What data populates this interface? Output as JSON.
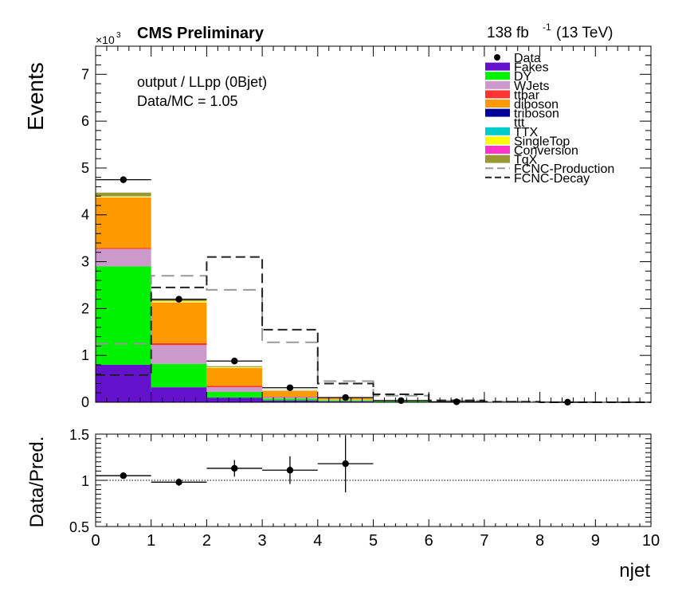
{
  "header": {
    "experiment": "CMS Preliminary",
    "lumi_value": "138 fb",
    "lumi_exp": "-1",
    "lumi_energy": "(13 TeV)",
    "info_line1": "output / LLpp (0Bjet)",
    "info_line2": "Data/MC = 1.05",
    "exponent_base": "×10",
    "exponent_power": "3"
  },
  "chart_data": [
    {
      "type": "bar",
      "stacked": true,
      "ylabel": "Events",
      "xlim": [
        0,
        10
      ],
      "ylim": [
        0,
        7.6
      ],
      "y_scale_note": "×10^3",
      "bin_edges": [
        0,
        1,
        2,
        3,
        4,
        5,
        6,
        7,
        8,
        9,
        10
      ],
      "yticks": [
        "0",
        "1",
        "2",
        "3",
        "4",
        "5",
        "6",
        "7"
      ],
      "series": [
        {
          "name": "Fakes",
          "color": "#6411cc",
          "values": [
            0.8,
            0.32,
            0.1,
            0.04,
            0.02,
            0.01,
            0.005,
            0.002,
            0.001,
            0.0
          ]
        },
        {
          "name": "DY",
          "color": "#00f200",
          "values": [
            2.1,
            0.5,
            0.12,
            0.04,
            0.02,
            0.01,
            0.004,
            0.002,
            0.001,
            0.0
          ]
        },
        {
          "name": "WJets",
          "color": "#cc99cc",
          "values": [
            0.37,
            0.4,
            0.1,
            0.03,
            0.01,
            0.004,
            0.002,
            0.001,
            0.0,
            0.0
          ]
        },
        {
          "name": "ttbar",
          "color": "#ff3333",
          "values": [
            0.02,
            0.04,
            0.03,
            0.01,
            0.005,
            0.002,
            0.001,
            0.0,
            0.0,
            0.0
          ]
        },
        {
          "name": "diboson",
          "color": "#ff9900",
          "values": [
            1.08,
            0.87,
            0.38,
            0.12,
            0.04,
            0.015,
            0.005,
            0.002,
            0.001,
            0.0
          ]
        },
        {
          "name": "triboson",
          "color": "#000099",
          "values": [
            0.005,
            0.004,
            0.003,
            0.001,
            0.0,
            0.0,
            0.0,
            0.0,
            0.0,
            0.0
          ]
        },
        {
          "name": "ttt",
          "color": "#ffffff",
          "values": [
            0.0,
            0.0,
            0.0,
            0.0,
            0.0,
            0.0,
            0.0,
            0.0,
            0.0,
            0.0
          ]
        },
        {
          "name": "TTX",
          "color": "#00cccc",
          "values": [
            0.005,
            0.005,
            0.005,
            0.003,
            0.001,
            0.0,
            0.0,
            0.0,
            0.0,
            0.0
          ]
        },
        {
          "name": "SingleTop",
          "color": "#ffff00",
          "values": [
            0.01,
            0.015,
            0.01,
            0.005,
            0.002,
            0.001,
            0.0,
            0.0,
            0.0,
            0.0
          ]
        },
        {
          "name": "Conversion",
          "color": "#ff33cc",
          "values": [
            0.005,
            0.004,
            0.002,
            0.001,
            0.0,
            0.0,
            0.0,
            0.0,
            0.0,
            0.0
          ]
        },
        {
          "name": "TqX",
          "color": "#999933",
          "values": [
            0.08,
            0.04,
            0.02,
            0.01,
            0.003,
            0.001,
            0.0,
            0.0,
            0.0,
            0.0
          ]
        }
      ],
      "signals": [
        {
          "name": "FCNC-Production",
          "color": "#999999",
          "style": "long-dash",
          "values": [
            1.25,
            2.7,
            2.4,
            1.28,
            0.45,
            0.14,
            0.03,
            0.01,
            0.0,
            0.0
          ]
        },
        {
          "name": "FCNC-Decay",
          "color": "#222222",
          "style": "dash",
          "values": [
            0.58,
            2.45,
            3.1,
            1.55,
            0.4,
            0.17,
            0.04,
            0.01,
            0.0,
            0.0
          ]
        }
      ],
      "data": {
        "name": "Data",
        "x": [
          0.5,
          1.5,
          2.5,
          3.5,
          4.5,
          5.5,
          6.5,
          8.5
        ],
        "y": [
          4.75,
          2.2,
          0.88,
          0.31,
          0.1,
          0.035,
          0.01,
          0.002
        ],
        "err": [
          0.07,
          0.05,
          0.03,
          0.018,
          0.01,
          0.006,
          0.003,
          0.0015
        ]
      },
      "legend_position": "top-right"
    },
    {
      "type": "scatter",
      "ylabel": "Data/Pred.",
      "xlabel": "njet",
      "xlim": [
        0,
        10
      ],
      "ylim": [
        0.5,
        1.5
      ],
      "xticks": [
        "0",
        "1",
        "2",
        "3",
        "4",
        "5",
        "6",
        "7",
        "8",
        "9",
        "10"
      ],
      "yticks": [
        "0.5",
        "1",
        "1.5"
      ],
      "reference_line": 1,
      "points": {
        "x": [
          0.5,
          1.5,
          2.5,
          3.5,
          4.5
        ],
        "y": [
          1.05,
          0.98,
          1.13,
          1.11,
          1.18
        ],
        "yerr": [
          0.02,
          0.04,
          0.09,
          0.15,
          0.31
        ]
      }
    }
  ]
}
